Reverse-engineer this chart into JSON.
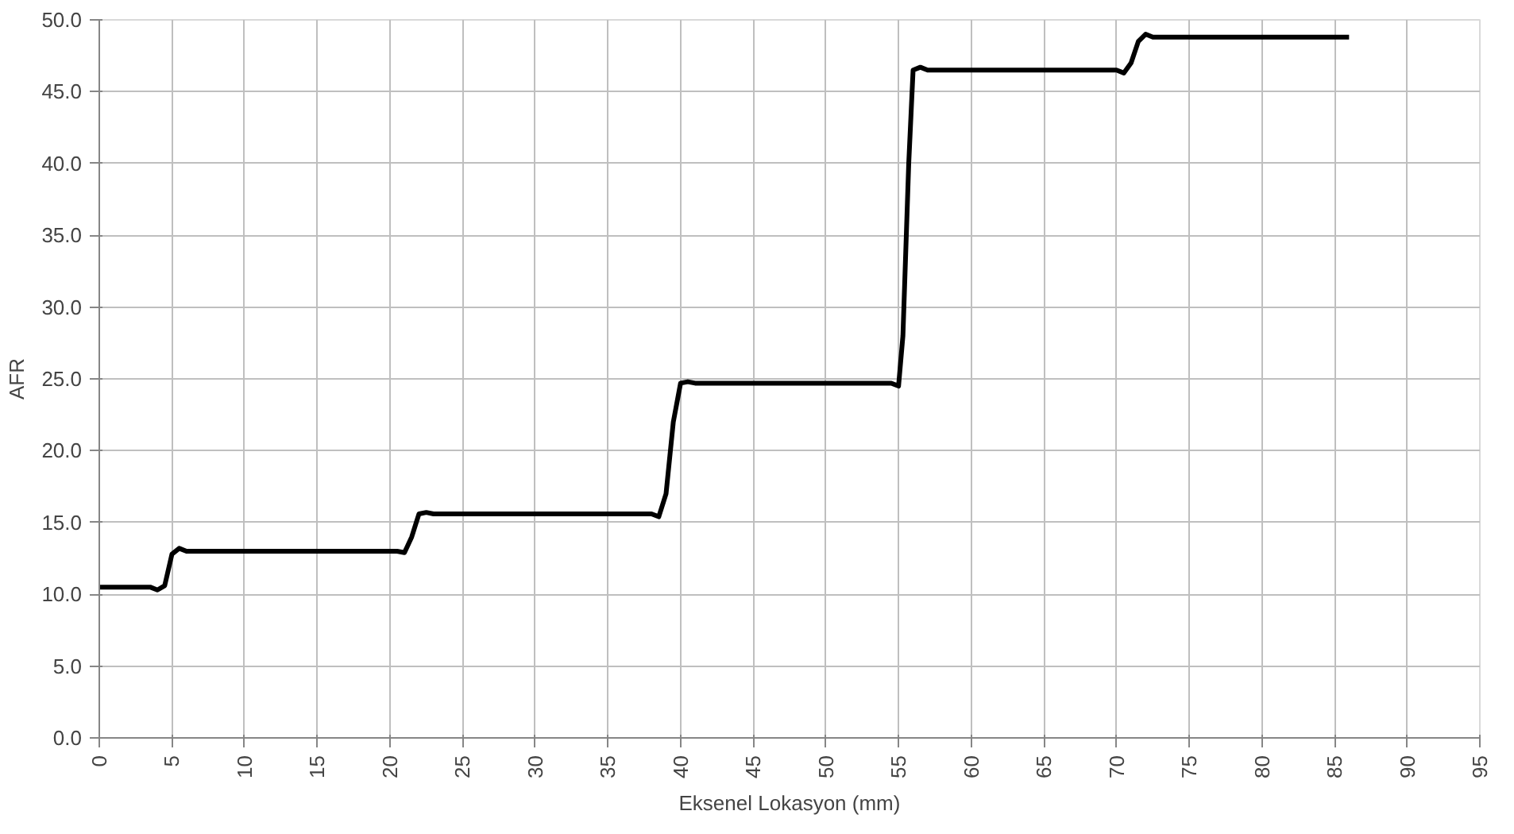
{
  "chart_data": {
    "type": "line",
    "xlabel": "Eksenel Lokasyon (mm)",
    "ylabel": "AFR",
    "x": [
      0,
      3.5,
      4,
      4.5,
      5,
      5.5,
      6,
      20.5,
      21,
      21.5,
      22,
      22.5,
      23,
      38,
      38.5,
      39,
      39.5,
      40,
      40.5,
      41,
      54.5,
      55,
      55.3,
      55.7,
      56,
      56.5,
      57,
      70,
      70.5,
      71,
      71.5,
      72,
      72.5,
      86
    ],
    "series": [
      {
        "color": "#000000",
        "values": [
          10.5,
          10.5,
          10.3,
          10.6,
          12.8,
          13.2,
          13.0,
          13.0,
          12.9,
          14,
          15.6,
          15.7,
          15.6,
          15.6,
          15.4,
          17,
          22,
          24.7,
          24.8,
          24.7,
          24.7,
          24.5,
          28,
          40,
          46.5,
          46.7,
          46.5,
          46.5,
          46.3,
          47,
          48.5,
          49,
          48.8,
          48.8
        ]
      }
    ],
    "xlim": [
      0,
      95
    ],
    "xticks": [
      0,
      5,
      10,
      15,
      20,
      25,
      30,
      35,
      40,
      45,
      50,
      55,
      60,
      65,
      70,
      75,
      80,
      85,
      90,
      95
    ],
    "ylim": [
      0,
      50
    ],
    "yticks": [
      {
        "value": 0,
        "label": "0.0"
      },
      {
        "value": 5,
        "label": "5.0"
      },
      {
        "value": 10,
        "label": "10.0"
      },
      {
        "value": 15,
        "label": "15.0"
      },
      {
        "value": 20,
        "label": "20.0"
      },
      {
        "value": 25,
        "label": "25.0"
      },
      {
        "value": 30,
        "label": "30.0"
      },
      {
        "value": 35,
        "label": "35.0"
      },
      {
        "value": 40,
        "label": "40.0"
      },
      {
        "value": 45,
        "label": "45.0"
      },
      {
        "value": 50,
        "label": "50.0"
      }
    ],
    "grid": true,
    "marker": "none",
    "line_style": "solid"
  }
}
